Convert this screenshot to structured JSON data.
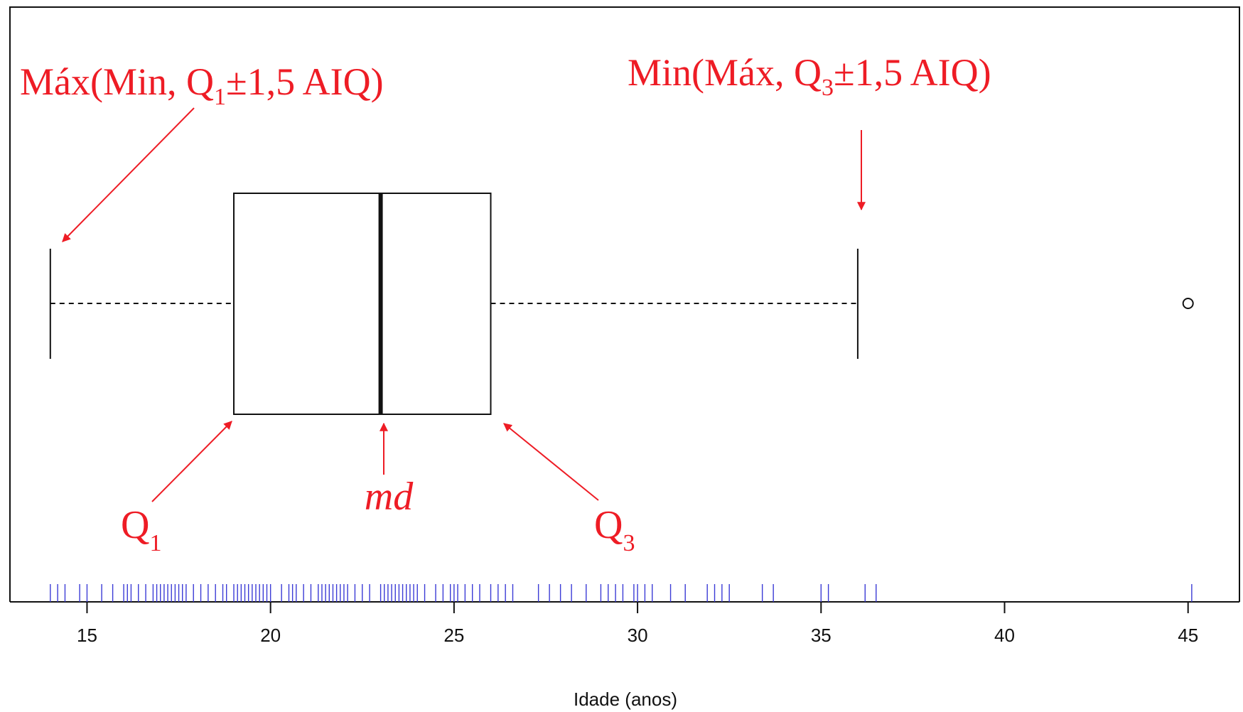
{
  "chart_data": {
    "type": "boxplot",
    "orientation": "horizontal",
    "xlabel": "Idade (anos)",
    "xlim": [
      12.9,
      46.4
    ],
    "xticks": [
      15,
      20,
      25,
      30,
      35,
      40,
      45
    ],
    "box": {
      "whisker_low": 14,
      "q1": 19,
      "median": 23,
      "q3": 26,
      "whisker_high": 36
    },
    "outliers": [
      45
    ],
    "rug": [
      14.0,
      14.2,
      14.4,
      14.8,
      15.0,
      15.4,
      15.7,
      16.0,
      16.1,
      16.2,
      16.4,
      16.6,
      16.8,
      16.9,
      17.0,
      17.1,
      17.2,
      17.3,
      17.4,
      17.5,
      17.6,
      17.7,
      17.9,
      18.1,
      18.3,
      18.5,
      18.7,
      18.8,
      19.0,
      19.1,
      19.2,
      19.3,
      19.4,
      19.5,
      19.6,
      19.7,
      19.8,
      19.9,
      20.0,
      20.3,
      20.5,
      20.6,
      20.7,
      20.9,
      21.1,
      21.3,
      21.4,
      21.5,
      21.6,
      21.7,
      21.8,
      21.9,
      22.0,
      22.1,
      22.3,
      22.5,
      22.7,
      23.0,
      23.1,
      23.2,
      23.3,
      23.4,
      23.5,
      23.6,
      23.7,
      23.8,
      23.9,
      24.0,
      24.2,
      24.5,
      24.7,
      24.9,
      25.0,
      25.1,
      25.3,
      25.5,
      25.7,
      26.0,
      26.2,
      26.4,
      26.6,
      27.3,
      27.6,
      27.9,
      28.2,
      28.6,
      29.0,
      29.2,
      29.4,
      29.6,
      29.9,
      30.0,
      30.2,
      30.4,
      30.9,
      31.3,
      31.9,
      32.1,
      32.3,
      32.5,
      33.4,
      33.7,
      35.0,
      35.2,
      36.2,
      36.5,
      45.1
    ],
    "annotations": {
      "lower_whisker": {
        "main": "Máx(Min, Q",
        "sub": "1",
        "rest": "±1,5 AIQ)"
      },
      "upper_whisker": {
        "main": "Min(Máx, Q",
        "sub": "3",
        "rest": "±1,5 AIQ)"
      },
      "q1": {
        "main": "Q",
        "sub": "1"
      },
      "median": {
        "main": "md"
      },
      "q3": {
        "main": "Q",
        "sub": "3"
      }
    },
    "colors": {
      "annotation": "#ee1c25",
      "rug": "#3b3bd6",
      "lines": "#111111"
    },
    "grid": false,
    "legend": "none"
  }
}
